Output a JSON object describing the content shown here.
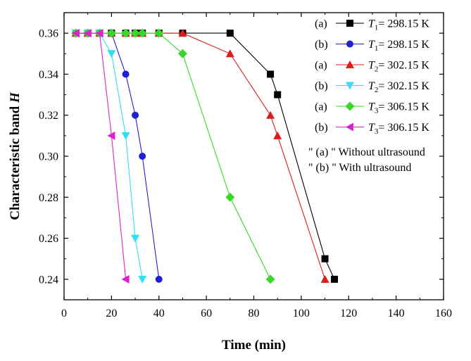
{
  "chart_data": {
    "type": "line",
    "xlabel": "Time (min)",
    "ylabel_prefix": "Characteristic band ",
    "ylabel_var": "H",
    "xlim": [
      0,
      160
    ],
    "ylim": [
      0.23,
      0.37
    ],
    "xticks": [
      0,
      20,
      40,
      60,
      80,
      100,
      120,
      140,
      160
    ],
    "yticks": [
      0.24,
      0.26,
      0.28,
      0.3,
      0.32,
      0.34,
      0.36
    ],
    "ytick_labels": [
      "0.24",
      "0.26",
      "0.28",
      "0.30",
      "0.32",
      "0.34",
      "0.36"
    ],
    "grid": false,
    "legend_position": "top-right",
    "series": [
      {
        "tag": "(a)",
        "var": "T",
        "sub": "1",
        "temp": "= 298.15 K",
        "color": "#000000",
        "marker": "square",
        "x": [
          5,
          10,
          15,
          20,
          26,
          30,
          33,
          40,
          50,
          70,
          87,
          90,
          110,
          114
        ],
        "y": [
          0.36,
          0.36,
          0.36,
          0.36,
          0.36,
          0.36,
          0.36,
          0.36,
          0.36,
          0.36,
          0.34,
          0.33,
          0.25,
          0.24
        ]
      },
      {
        "tag": "(b)",
        "var": "T",
        "sub": "1",
        "temp": "= 298.15 K",
        "color": "#1f1fd6",
        "marker": "circle",
        "x": [
          5,
          10,
          15,
          20,
          26,
          30,
          33,
          40
        ],
        "y": [
          0.36,
          0.36,
          0.36,
          0.36,
          0.34,
          0.32,
          0.3,
          0.24
        ]
      },
      {
        "tag": "(a)",
        "var": "T",
        "sub": "2",
        "temp": "= 302.15 K",
        "color": "#e01b1b",
        "marker": "triangle-up",
        "x": [
          5,
          10,
          15,
          20,
          26,
          30,
          33,
          40,
          50,
          70,
          87,
          90,
          110
        ],
        "y": [
          0.36,
          0.36,
          0.36,
          0.36,
          0.36,
          0.36,
          0.36,
          0.36,
          0.36,
          0.35,
          0.32,
          0.31,
          0.24
        ]
      },
      {
        "tag": "(b)",
        "var": "T",
        "sub": "2",
        "temp": "= 302.15 K",
        "color": "#2ee0f0",
        "marker": "triangle-down",
        "x": [
          5,
          10,
          15,
          20,
          26,
          30,
          33
        ],
        "y": [
          0.36,
          0.36,
          0.36,
          0.35,
          0.31,
          0.26,
          0.24
        ]
      },
      {
        "tag": "(a)",
        "var": "T",
        "sub": "3",
        "temp": "= 306.15 K",
        "color": "#39d62c",
        "marker": "diamond",
        "x": [
          5,
          10,
          15,
          20,
          26,
          30,
          33,
          40,
          50,
          70,
          87
        ],
        "y": [
          0.36,
          0.36,
          0.36,
          0.36,
          0.36,
          0.36,
          0.36,
          0.36,
          0.35,
          0.28,
          0.24
        ]
      },
      {
        "tag": "(b)",
        "var": "T",
        "sub": "3",
        "temp": "= 306.15 K",
        "color": "#e01fd0",
        "marker": "triangle-left",
        "x": [
          5,
          10,
          15,
          20,
          26
        ],
        "y": [
          0.36,
          0.36,
          0.36,
          0.31,
          0.24
        ]
      }
    ],
    "notes": [
      "\" (a) \" Without ultrasound",
      "\" (b) \" With ultrasound"
    ]
  }
}
